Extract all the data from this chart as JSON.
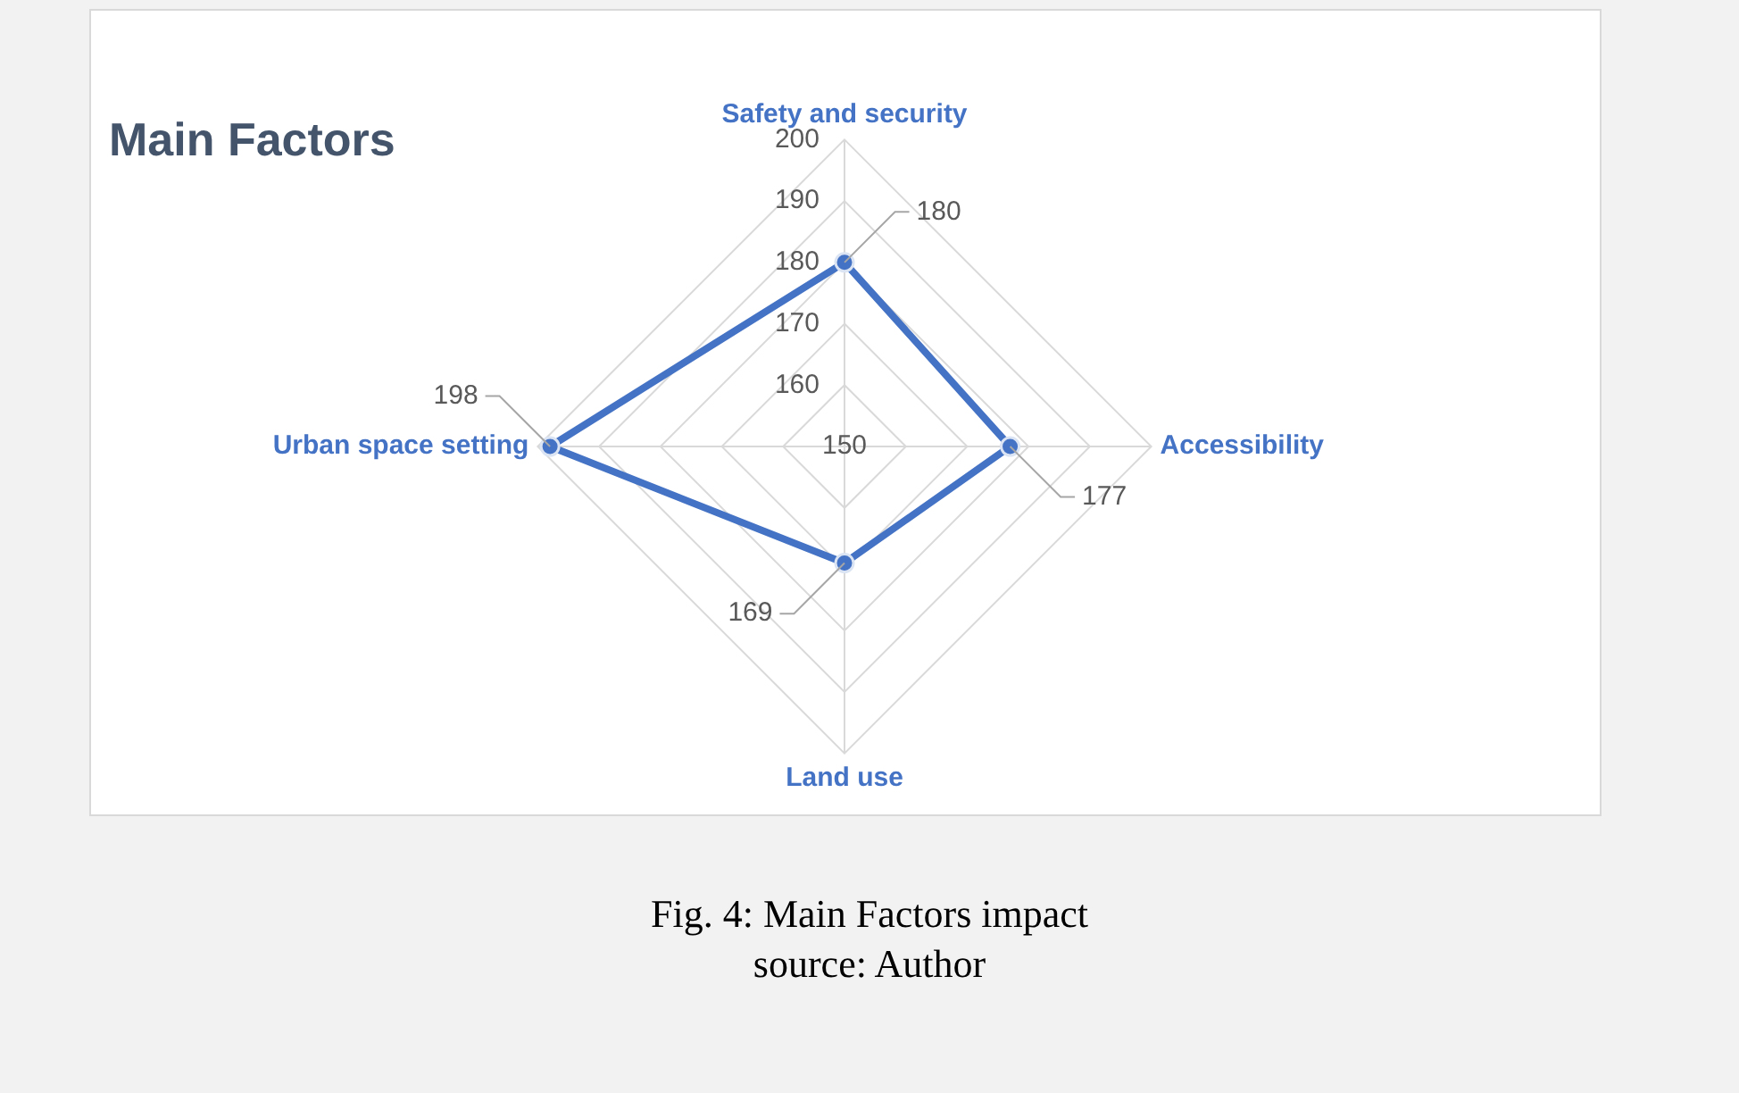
{
  "chart_data": {
    "type": "radar",
    "title": "Main Factors",
    "categories": [
      "Safety and security",
      "Accessibility",
      "Land use",
      "Urban space setting"
    ],
    "series": [
      {
        "color": "#4472c4",
        "values": [
          180,
          177,
          169,
          198
        ]
      }
    ],
    "ylim": [
      150,
      200
    ],
    "yticks": [
      150,
      160,
      170,
      180,
      190,
      200
    ],
    "grid": true,
    "legend": false,
    "marker": "circle",
    "data_labels": true,
    "annotations": [
      "Fig. 4: Main Factors impact",
      "source: Author"
    ]
  }
}
